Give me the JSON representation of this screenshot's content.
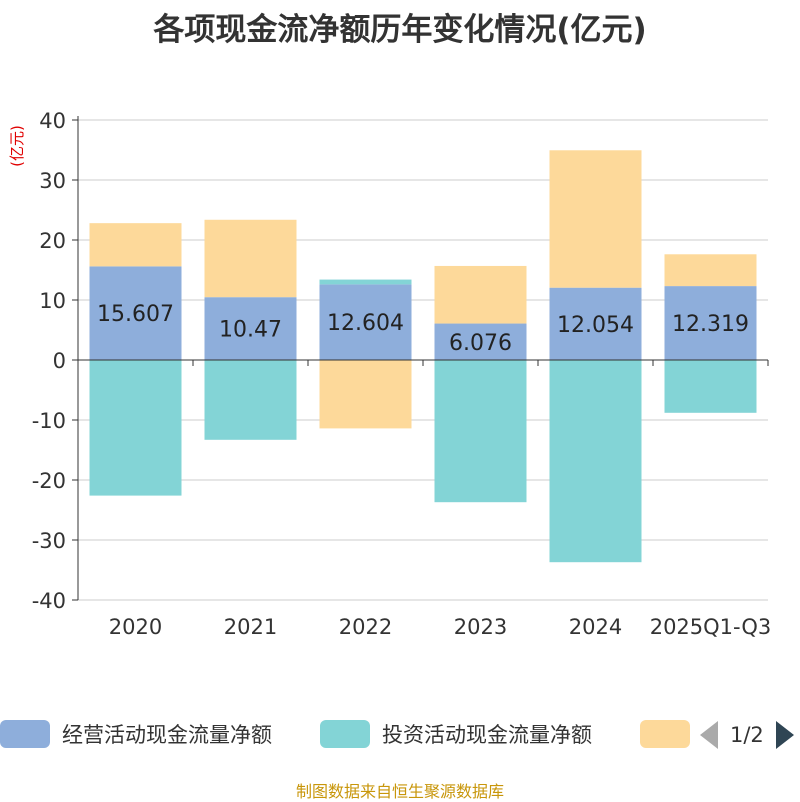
{
  "colors": {
    "operating": "#8eaedb",
    "investing": "#83d4d6",
    "financing": "#fdd99a",
    "axis": "#333333",
    "grid": "#cccccc",
    "unit": "#e00000"
  },
  "chart_data": {
    "type": "bar",
    "title": "各项现金流净额历年变化情况(亿元)",
    "ylabel": "(亿元)",
    "ylim": [
      -40,
      40
    ],
    "yticks": [
      40,
      30,
      20,
      10,
      0,
      -10,
      -20,
      -30,
      -40
    ],
    "categories": [
      "2020",
      "2021",
      "2022",
      "2023",
      "2024",
      "2025Q1-Q3"
    ],
    "stacked": true,
    "series": [
      {
        "name": "经营活动现金流量净额",
        "values": [
          15.607,
          10.47,
          12.604,
          6.076,
          12.054,
          12.319
        ],
        "labeled": true
      },
      {
        "name": "投资活动现金流量净额",
        "values": [
          -22.6,
          -13.3,
          0.8,
          -23.7,
          -33.7,
          -8.8
        ],
        "labeled": false
      },
      {
        "name": "",
        "values": [
          7.2,
          12.9,
          -11.4,
          9.6,
          22.9,
          5.3
        ],
        "labeled": false
      }
    ]
  },
  "legend": {
    "pager": "1/2"
  },
  "source": "制图数据来自恒生聚源数据库"
}
